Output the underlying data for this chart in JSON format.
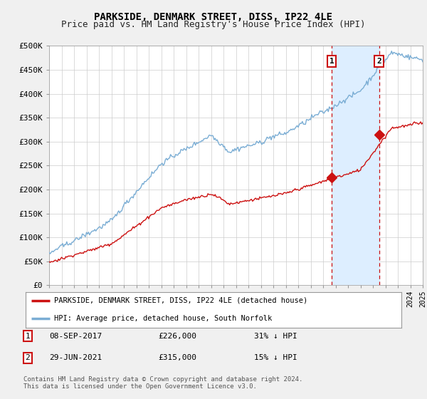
{
  "title": "PARKSIDE, DENMARK STREET, DISS, IP22 4LE",
  "subtitle": "Price paid vs. HM Land Registry's House Price Index (HPI)",
  "ylim": [
    0,
    500000
  ],
  "yticks": [
    0,
    50000,
    100000,
    150000,
    200000,
    250000,
    300000,
    350000,
    400000,
    450000,
    500000
  ],
  "ytick_labels": [
    "£0",
    "£50K",
    "£100K",
    "£150K",
    "£200K",
    "£250K",
    "£300K",
    "£350K",
    "£400K",
    "£450K",
    "£500K"
  ],
  "hpi_color": "#7aadd4",
  "property_color": "#cc1111",
  "marker1_x": 2017.69,
  "marker2_x": 2021.49,
  "marker1_price": 226000,
  "marker2_price": 315000,
  "marker1_date": "08-SEP-2017",
  "marker2_date": "29-JUN-2021",
  "marker1_pct": "31% ↓ HPI",
  "marker2_pct": "15% ↓ HPI",
  "legend_label1": "PARKSIDE, DENMARK STREET, DISS, IP22 4LE (detached house)",
  "legend_label2": "HPI: Average price, detached house, South Norfolk",
  "footer": "Contains HM Land Registry data © Crown copyright and database right 2024.\nThis data is licensed under the Open Government Licence v3.0.",
  "bg_color": "#f0f0f0",
  "plot_bg": "#ffffff",
  "shade_color": "#ddeeff",
  "grid_color": "#cccccc",
  "title_fontsize": 10,
  "subtitle_fontsize": 9
}
